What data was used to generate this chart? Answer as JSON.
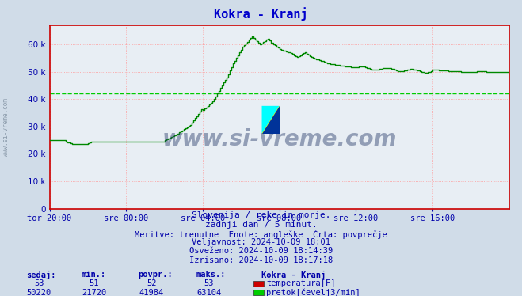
{
  "title": "Kokra - Kranj",
  "title_color": "#0000cc",
  "bg_color": "#d0dce8",
  "plot_bg_color": "#e8eef4",
  "grid_color_major": "#ff9999",
  "axis_color": "#cc0000",
  "text_color": "#0000aa",
  "xlabel_ticks": [
    "tor 20:00",
    "sre 00:00",
    "sre 04:00",
    "sre 08:00",
    "sre 12:00",
    "sre 16:00"
  ],
  "ytick_labels": [
    "0",
    "10 k",
    "20 k",
    "30 k",
    "40 k",
    "50 k",
    "60 k"
  ],
  "ytick_values": [
    0,
    10000,
    20000,
    30000,
    40000,
    50000,
    60000
  ],
  "ylim": [
    0,
    67000
  ],
  "xlim": [
    0,
    288
  ],
  "avg_line_value": 41984,
  "avg_line_color": "#00cc00",
  "flow_line_color": "#008800",
  "watermark": "www.si-vreme.com",
  "watermark_color": "#2a3d6b",
  "watermark_alpha": 0.45,
  "footer_lines": [
    "Slovenija / reke in morje.",
    "zadnji dan / 5 minut.",
    "Meritve: trenutne  Enote: angleške  Črta: povprečje",
    "Veljavnost: 2024-10-09 18:01",
    "Osveženo: 2024-10-09 18:14:39",
    "Izrisano: 2024-10-09 18:17:18"
  ],
  "stats_headers": [
    "sedaj:",
    "min.:",
    "povpr.:",
    "maks.:"
  ],
  "stats_temp": [
    53,
    51,
    52,
    53
  ],
  "stats_flow": [
    50220,
    21720,
    41984,
    63104
  ],
  "station_label": "Kokra - Kranj",
  "legend_temp_label": "temperatura[F]",
  "legend_flow_label": "pretok[čevelj3/min]",
  "temp_color": "#cc0000",
  "flow_color": "#00cc00",
  "n_points": 288,
  "logo_yellow": "#ffff00",
  "logo_cyan": "#00ffff",
  "logo_blue": "#003399",
  "sidewatermark": "www.si-vreme.com",
  "sidewatermark_color": "#778899"
}
